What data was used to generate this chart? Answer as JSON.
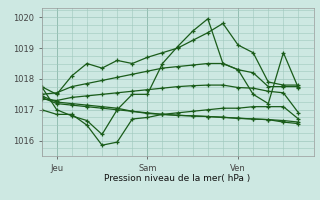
{
  "title": "Pression niveau de la mer( hPa )",
  "bg_color": "#cde8e2",
  "grid_color": "#a0c8be",
  "line_color": "#1a5c1a",
  "xlim": [
    0,
    54
  ],
  "ylim": [
    1015.5,
    1020.3
  ],
  "yticks": [
    1016,
    1017,
    1018,
    1019,
    1020
  ],
  "xtick_labels": [
    "Jeu",
    "Sam",
    "Ven"
  ],
  "xtick_pos": [
    3,
    21,
    39
  ],
  "vline_pos": [
    3,
    21,
    39
  ],
  "series": [
    {
      "x": [
        0,
        3,
        6,
        9,
        12,
        15,
        18,
        21,
        24,
        27,
        30,
        33,
        36,
        39,
        42,
        45,
        48,
        51
      ],
      "y": [
        1017.75,
        1017.5,
        1018.1,
        1018.5,
        1018.35,
        1018.6,
        1018.5,
        1018.7,
        1018.85,
        1019.0,
        1019.25,
        1019.5,
        1019.8,
        1019.1,
        1018.85,
        1017.9,
        1017.8,
        1017.8
      ]
    },
    {
      "x": [
        0,
        3,
        6,
        9,
        12,
        15,
        18,
        21,
        24,
        27,
        30,
        33,
        36,
        39,
        42,
        45,
        48,
        51
      ],
      "y": [
        1017.0,
        1016.85,
        1016.85,
        1016.5,
        1015.85,
        1015.95,
        1016.7,
        1016.75,
        1016.85,
        1016.9,
        1016.95,
        1017.0,
        1017.05,
        1017.05,
        1017.1,
        1017.1,
        1017.1,
        1016.7
      ]
    },
    {
      "x": [
        0,
        3,
        6,
        9,
        12,
        15,
        18,
        21,
        24,
        27,
        30,
        33,
        36,
        39,
        42,
        45,
        48,
        51
      ],
      "y": [
        1017.5,
        1017.55,
        1017.75,
        1017.85,
        1017.95,
        1018.05,
        1018.15,
        1018.25,
        1018.35,
        1018.4,
        1018.45,
        1018.5,
        1018.5,
        1018.3,
        1018.2,
        1017.75,
        1017.75,
        1017.75
      ]
    },
    {
      "x": [
        0,
        3,
        6,
        9,
        12,
        15,
        18,
        21,
        24,
        27,
        30,
        33,
        36,
        39,
        42,
        45,
        48,
        51
      ],
      "y": [
        1017.35,
        1017.3,
        1017.4,
        1017.45,
        1017.5,
        1017.55,
        1017.6,
        1017.65,
        1017.7,
        1017.75,
        1017.78,
        1017.8,
        1017.8,
        1017.72,
        1017.7,
        1017.6,
        1017.55,
        1016.9
      ]
    },
    {
      "x": [
        0,
        3,
        6,
        9,
        12,
        15,
        18,
        21,
        24,
        27,
        30,
        33,
        36,
        39,
        42,
        45,
        48,
        51
      ],
      "y": [
        1017.4,
        1017.2,
        1017.15,
        1017.1,
        1017.05,
        1017.0,
        1016.95,
        1016.9,
        1016.85,
        1016.82,
        1016.8,
        1016.78,
        1016.75,
        1016.73,
        1016.7,
        1016.68,
        1016.65,
        1016.6
      ]
    },
    {
      "x": [
        0,
        3,
        6,
        9,
        12,
        15,
        18,
        21,
        24,
        27,
        30,
        33,
        36,
        39,
        42,
        45,
        48,
        51
      ],
      "y": [
        1017.45,
        1017.25,
        1017.2,
        1017.15,
        1017.1,
        1017.05,
        1016.95,
        1016.88,
        1016.85,
        1016.82,
        1016.8,
        1016.78,
        1016.76,
        1016.72,
        1016.7,
        1016.68,
        1016.6,
        1016.55
      ]
    },
    {
      "x": [
        0,
        3,
        6,
        9,
        12,
        15,
        18,
        21,
        24,
        27,
        30,
        33,
        36,
        39,
        42,
        45,
        48,
        51
      ],
      "y": [
        1017.75,
        1017.0,
        1016.8,
        1016.65,
        1016.2,
        1017.0,
        1017.5,
        1017.5,
        1018.5,
        1019.05,
        1019.55,
        1019.95,
        1018.5,
        1018.3,
        1017.5,
        1017.2,
        1018.85,
        1017.7
      ]
    }
  ]
}
